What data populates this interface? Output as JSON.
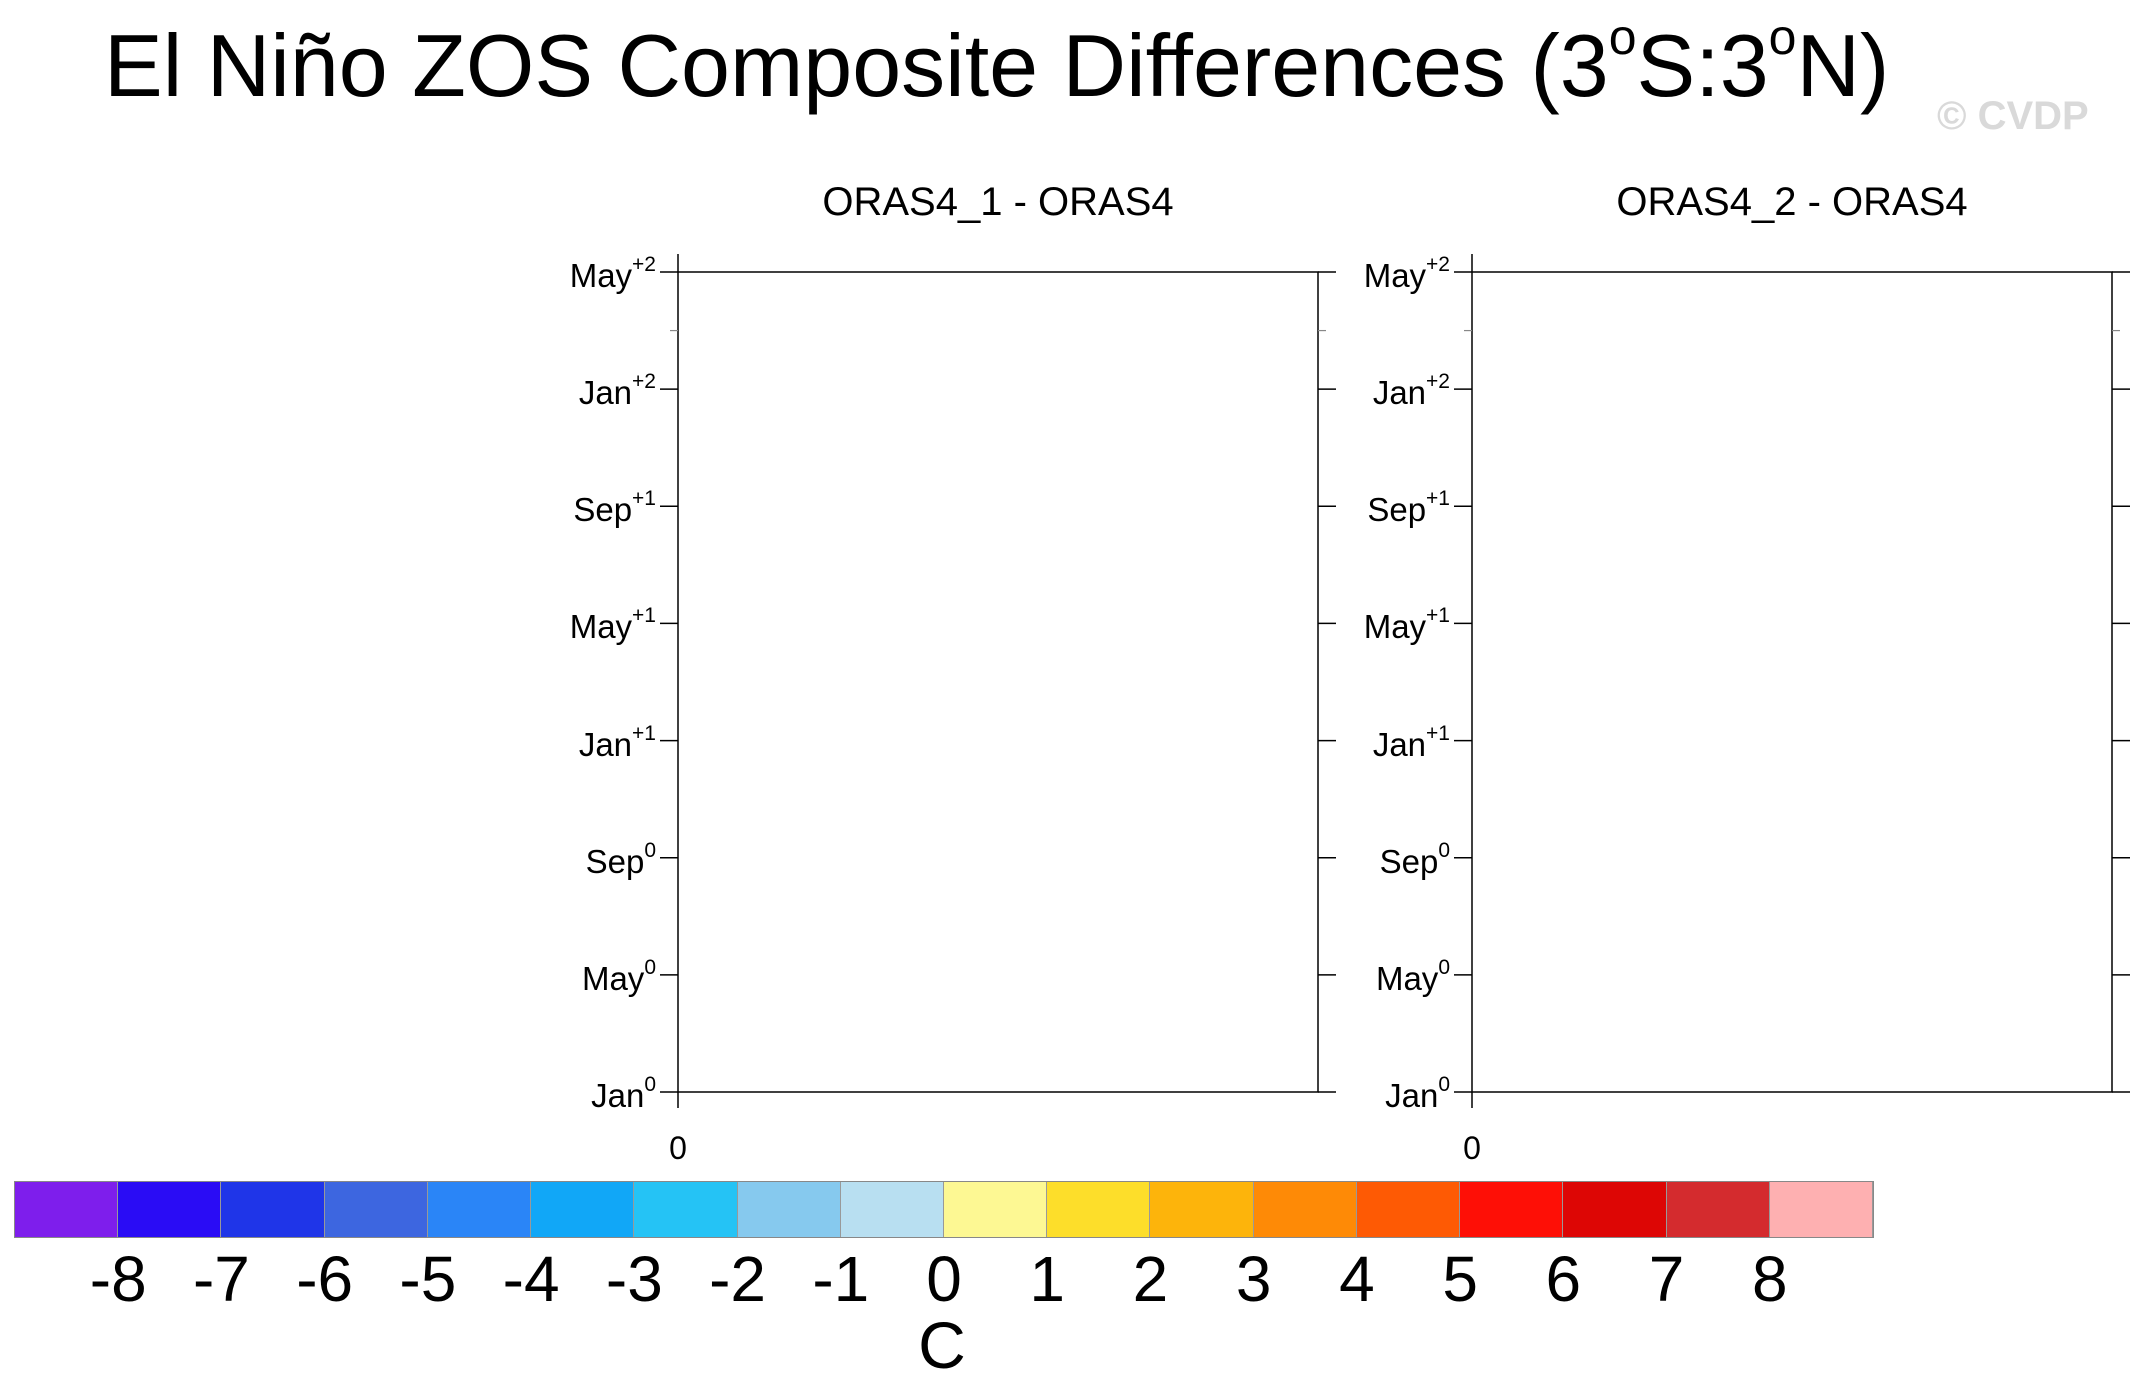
{
  "title": {
    "before": "El Niño ZOS Composite Differences (3",
    "deg1": "o",
    "mid": "S:3",
    "deg2": "o",
    "after": "N)"
  },
  "watermark": "© CVDP",
  "chart_data": [
    {
      "type": "heatmap",
      "title": "ORAS4_1 - ORAS4",
      "y_ticks": [
        {
          "label": "May",
          "sup": "+2"
        },
        {
          "label": "Jan",
          "sup": "+2"
        },
        {
          "label": "Sep",
          "sup": "+1"
        },
        {
          "label": "May",
          "sup": "+1"
        },
        {
          "label": "Jan",
          "sup": "+1"
        },
        {
          "label": "Sep",
          "sup": "0"
        },
        {
          "label": "May",
          "sup": "0"
        },
        {
          "label": "Jan",
          "sup": "0"
        }
      ],
      "x_ticks": [
        "0"
      ],
      "values": []
    },
    {
      "type": "heatmap",
      "title": "ORAS4_2 - ORAS4",
      "y_ticks": [
        {
          "label": "May",
          "sup": "+2"
        },
        {
          "label": "Jan",
          "sup": "+2"
        },
        {
          "label": "Sep",
          "sup": "+1"
        },
        {
          "label": "May",
          "sup": "+1"
        },
        {
          "label": "Jan",
          "sup": "+1"
        },
        {
          "label": "Sep",
          "sup": "0"
        },
        {
          "label": "May",
          "sup": "0"
        },
        {
          "label": "Jan",
          "sup": "0"
        }
      ],
      "x_ticks": [
        "0"
      ],
      "values": []
    }
  ],
  "colorbar": {
    "colors": [
      "#7e1eec",
      "#2a0cf5",
      "#1f35e8",
      "#3d66e0",
      "#2a85f7",
      "#11a7f7",
      "#25c3f5",
      "#86c9ee",
      "#b8dff1",
      "#fdf893",
      "#fdde2a",
      "#fdb40b",
      "#fe8a06",
      "#fe5a04",
      "#fe0f06",
      "#dd0605",
      "#d42b2e",
      "#feb0b1"
    ],
    "ticks": [
      "-8",
      "-7",
      "-6",
      "-5",
      "-4",
      "-3",
      "-2",
      "-1",
      "0",
      "1",
      "2",
      "3",
      "4",
      "5",
      "6",
      "7",
      "8"
    ],
    "units": "C"
  }
}
